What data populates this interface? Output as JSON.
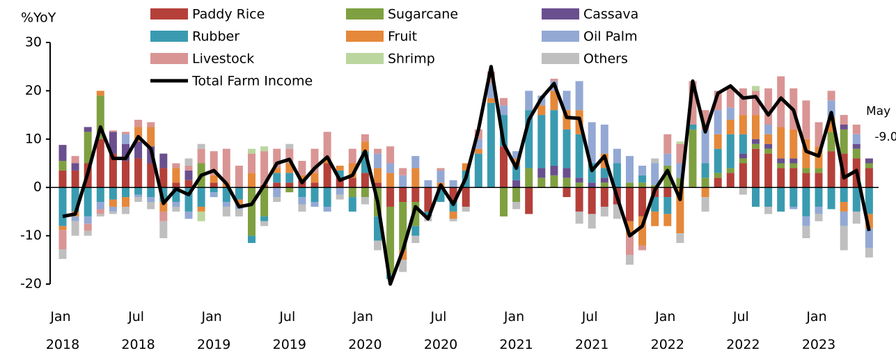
{
  "chart_data": {
    "type": "stacked-bar-line",
    "y_label": "%YoY",
    "annotations": [
      "May"
    ],
    "categories": [
      "Jan 2018",
      null,
      null,
      null,
      null,
      null,
      "Jul 2018",
      null,
      null,
      null,
      null,
      null,
      "Jan 2019",
      null,
      null,
      null,
      null,
      null,
      "Jul 2019",
      null,
      null,
      null,
      null,
      null,
      "Jan 2020",
      null,
      null,
      null,
      null,
      null,
      "Jul 2020",
      null,
      null,
      null,
      null,
      null,
      "Jan 2021",
      null,
      null,
      null,
      null,
      null,
      "Jul 2021",
      null,
      null,
      null,
      null,
      null,
      "Jan 2022",
      null,
      null,
      null,
      null,
      null,
      "Jul 2022",
      null,
      null,
      null,
      null,
      null,
      "Jan 2023",
      null,
      null,
      null,
      null
    ],
    "ylim": [
      -20,
      30
    ],
    "yticks": [
      -20,
      -10,
      0,
      10,
      20,
      30
    ],
    "grid": false,
    "series": [
      {
        "name": "Paddy Rice",
        "color": "#b5403a",
        "values": [
          3.5,
          3.5,
          5,
          10,
          7,
          5.5,
          6,
          5,
          4,
          1,
          1.5,
          0,
          1,
          0,
          0,
          0,
          0.5,
          1,
          1,
          1.5,
          1,
          5,
          2,
          2,
          3,
          1,
          -4,
          -3,
          -3,
          -5,
          0,
          -3,
          -4,
          0,
          0,
          8.5,
          0,
          -5.5,
          0,
          0,
          -2,
          -5,
          -5.5,
          -4,
          -3.5,
          -7,
          -6,
          -2,
          -2,
          0,
          0,
          0,
          2,
          3,
          5,
          8,
          7,
          4,
          4,
          3,
          3,
          7.5,
          7,
          6,
          4
        ]
      },
      {
        "name": "Sugarcane",
        "color": "#7fa040",
        "values": [
          2,
          0,
          6.5,
          9,
          0,
          0,
          0,
          0,
          0,
          0,
          0,
          5,
          0,
          0,
          0,
          -10,
          -6,
          0,
          -1,
          0,
          0,
          0,
          0,
          -2,
          -2,
          -6,
          -14,
          -10,
          -5,
          0,
          0,
          0,
          0,
          0,
          0,
          -6,
          -3,
          4,
          2,
          2.5,
          2,
          1,
          0,
          1,
          0,
          1,
          1,
          0.5,
          4.5,
          2,
          12,
          2,
          1,
          1,
          1,
          1,
          1,
          1,
          1,
          1,
          1,
          4,
          5,
          2,
          1
        ]
      },
      {
        "name": "Cassava",
        "color": "#6a4f8f",
        "values": [
          3.3,
          1.5,
          1,
          0,
          4.5,
          3.5,
          3.5,
          3.5,
          3,
          0,
          2,
          0,
          0,
          0,
          0,
          0,
          0,
          0,
          0,
          0,
          0,
          0,
          0,
          0,
          0,
          0,
          0,
          0,
          0,
          0,
          0,
          0,
          0,
          0,
          0,
          0,
          1.5,
          0,
          2,
          2,
          2,
          1,
          1,
          1,
          0,
          0,
          0,
          0,
          0,
          0,
          0,
          0,
          0,
          0,
          1,
          1,
          1,
          1,
          1,
          0,
          0,
          0,
          1,
          1,
          1
        ]
      },
      {
        "name": "Rubber",
        "color": "#3a9bb0",
        "values": [
          -8,
          -5,
          -6,
          -3,
          -2.5,
          -2,
          -1.5,
          -2,
          -3,
          -3,
          -5,
          -4,
          -1,
          -3,
          -2.5,
          -1.5,
          -1,
          2,
          2,
          -2,
          -3,
          -4,
          1.5,
          -3,
          4.5,
          -5,
          -1,
          0,
          -2,
          -1,
          -3,
          -2,
          3.5,
          7,
          17.5,
          6.5,
          3,
          12,
          11,
          11.5,
          8,
          9,
          4,
          2,
          5,
          0,
          1.5,
          -3,
          -3.5,
          0,
          1,
          3,
          5,
          7,
          4,
          -4,
          -4,
          -5,
          -4,
          -6,
          -4,
          -4.5,
          -3,
          -5,
          -5.5
        ]
      },
      {
        "name": "Fruit",
        "color": "#e5883a",
        "values": [
          -0.8,
          -1,
          0,
          1,
          -1.5,
          -2,
          3,
          4,
          -2,
          3,
          0,
          -1,
          1.5,
          1,
          -1,
          3,
          0,
          1,
          2,
          1,
          2,
          1,
          1,
          3,
          2,
          3,
          3,
          -2,
          4,
          0,
          1,
          -1.5,
          1.5,
          1,
          1,
          0,
          1.5,
          0,
          2,
          4,
          4,
          5,
          0,
          3,
          0,
          -3,
          -6,
          -3,
          -2.5,
          -9.5,
          0,
          -2,
          3,
          3,
          4,
          5,
          2,
          6.5,
          6,
          6,
          4.5,
          3,
          -2,
          0,
          -3
        ]
      },
      {
        "name": "Oil Palm",
        "color": "#93a9d4",
        "values": [
          0,
          -1,
          -1.5,
          -1.5,
          -1,
          2,
          -0.5,
          -1,
          0,
          -1,
          -1.5,
          0,
          -1,
          -1,
          -1,
          0,
          0,
          -2,
          0,
          -1.5,
          -1,
          -1,
          -1.5,
          0,
          0,
          3,
          2,
          2.5,
          2.5,
          1.5,
          2.5,
          1.5,
          0,
          2,
          3,
          2,
          1.5,
          4,
          2,
          2,
          4,
          6,
          8.5,
          6,
          3,
          5.5,
          2,
          4.5,
          2.5,
          3,
          0,
          7,
          5,
          2.5,
          0,
          0,
          2,
          0,
          -0.5,
          -2,
          -1.5,
          3.5,
          -3,
          2,
          -4
        ]
      },
      {
        "name": "Livestock",
        "color": "#d99594",
        "values": [
          -4,
          1.5,
          -1.5,
          -1,
          0.3,
          0.5,
          1.5,
          1,
          -2,
          1,
          1,
          3,
          5,
          7,
          4.5,
          4,
          7,
          4,
          3,
          3,
          5,
          5.5,
          0,
          3,
          1.5,
          1,
          3.5,
          1.5,
          0,
          0,
          0.5,
          0,
          0,
          2,
          2.5,
          1.5,
          0,
          0,
          0,
          0.5,
          0,
          0,
          0,
          0,
          0,
          -4,
          -1,
          0,
          4,
          4,
          9,
          4,
          4,
          4,
          5.5,
          5,
          7.5,
          10.5,
          8.5,
          8,
          5,
          2,
          2,
          2,
          0
        ]
      },
      {
        "name": "Shrimp",
        "color": "#bcd6a0",
        "values": [
          0,
          0,
          0,
          0,
          0,
          0,
          0,
          0,
          0,
          0,
          0,
          -2,
          0,
          0,
          0,
          1,
          1,
          0,
          0,
          0,
          0,
          0,
          0,
          0,
          0,
          0,
          0,
          0,
          0,
          0,
          0,
          0,
          0,
          0,
          0,
          0,
          0,
          0,
          0,
          0,
          0,
          0,
          0,
          0,
          0,
          0,
          0,
          0,
          0,
          0.5,
          0,
          0,
          0,
          0,
          0,
          1,
          0,
          0,
          0,
          0,
          0,
          0,
          0,
          0,
          0
        ]
      },
      {
        "name": "Others",
        "color": "#bfbfbf",
        "values": [
          -2,
          -3,
          -1,
          -0.5,
          -0.5,
          -1.5,
          -1,
          -1.5,
          -3.5,
          -1,
          1.5,
          1,
          0,
          -2,
          -1.5,
          0,
          -1,
          -1,
          1,
          -1.5,
          0,
          0,
          -1,
          0,
          -1.5,
          -2,
          0,
          -2.5,
          -1.5,
          -1,
          0,
          -0.5,
          -1,
          0,
          0,
          0,
          -1.5,
          0,
          0,
          0,
          0,
          -2.5,
          -3,
          -2,
          -3,
          -2,
          0,
          1,
          0,
          -2,
          0,
          -3,
          0,
          0,
          -1.5,
          0,
          -1.5,
          0,
          0,
          -2.5,
          -1.5,
          0,
          -5,
          -2.5,
          -2
        ]
      },
      {
        "name": "Total Farm Income",
        "color": "#000000",
        "kind": "line",
        "values": [
          -6,
          -5.5,
          3,
          12.5,
          6,
          6,
          10.5,
          8,
          -3.3,
          -0.3,
          -1.5,
          2.5,
          3.5,
          0.8,
          -4,
          -3.5,
          0.5,
          5,
          5.8,
          1,
          4,
          6.3,
          1.5,
          2.5,
          7.5,
          -3,
          -20,
          -13,
          -4,
          -6.5,
          0.5,
          -3.5,
          2,
          12,
          25,
          9,
          4,
          14,
          18.5,
          21.5,
          14.5,
          14.3,
          3.5,
          6.5,
          -2,
          -10,
          -8,
          -0.5,
          3.5,
          -2.5,
          22,
          11.5,
          19.5,
          21,
          18.5,
          18.8,
          15,
          18.5,
          16,
          7.5,
          6.5,
          15.5,
          2,
          3.5,
          -9
        ],
        "value_labels": [
          null,
          null,
          null,
          null,
          null,
          null,
          null,
          null,
          null,
          null,
          null,
          null,
          null,
          null,
          null,
          null,
          null,
          null,
          null,
          null,
          null,
          null,
          null,
          null,
          null,
          null,
          null,
          null,
          null,
          null,
          null,
          null,
          null,
          null,
          null,
          null,
          null,
          null,
          null,
          null,
          null,
          null,
          null,
          null,
          null,
          null,
          null,
          null,
          null,
          null,
          null,
          null,
          null,
          null,
          null,
          null,
          null,
          null,
          null,
          null,
          null,
          null,
          null,
          null,
          "-9.0"
        ]
      }
    ]
  }
}
